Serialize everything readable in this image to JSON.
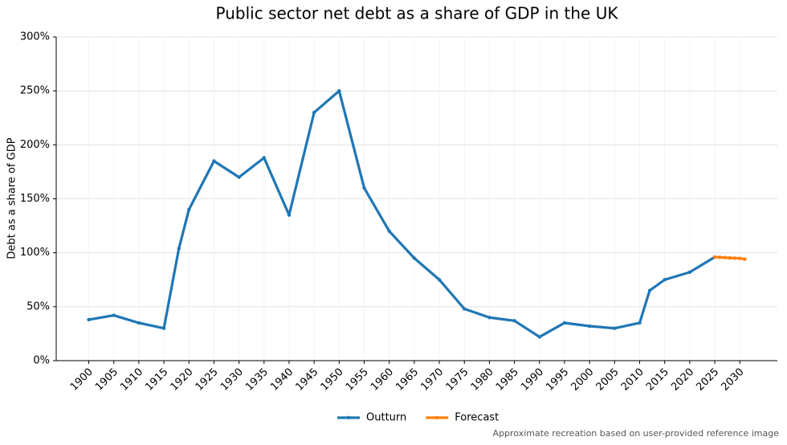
{
  "chart_data": {
    "type": "line",
    "title": "Public sector net debt as a share of GDP in the UK",
    "y_label": "Debt as a share of GDP",
    "footnote": "Approximate recreation based on user-provided reference image",
    "series": [
      {
        "name": "Outturn",
        "color": "#1f77b4",
        "x": [
          1900,
          1905,
          1910,
          1915,
          1918,
          1920,
          1925,
          1930,
          1935,
          1940,
          1945,
          1950,
          1955,
          1960,
          1965,
          1970,
          1975,
          1980,
          1985,
          1990,
          1995,
          2000,
          2005,
          2010,
          2012,
          2015,
          2020,
          2025
        ],
        "values": [
          38,
          42,
          35,
          30,
          104,
          140,
          185,
          170,
          188,
          135,
          230,
          250,
          160,
          120,
          95,
          75,
          48,
          40,
          37,
          22,
          35,
          32,
          30,
          35,
          65,
          75,
          82,
          96
        ]
      },
      {
        "name": "Forecast",
        "color": "#ff7f0e",
        "x": [
          2025,
          2026,
          2027,
          2028,
          2029,
          2030,
          2031
        ],
        "values": [
          96,
          95.8,
          95.5,
          95.2,
          95,
          94.8,
          94
        ]
      }
    ],
    "xlim": [
      1893.5,
      2037.5
    ],
    "xticks": [
      1900,
      1905,
      1910,
      1915,
      1920,
      1925,
      1930,
      1935,
      1940,
      1945,
      1950,
      1955,
      1960,
      1965,
      1970,
      1975,
      1980,
      1985,
      1990,
      1995,
      2000,
      2005,
      2010,
      2015,
      2020,
      2025,
      2030
    ],
    "ylim": [
      0,
      300
    ],
    "yticks": [
      {
        "value": 0,
        "label": "0%"
      },
      {
        "value": 50,
        "label": "50%"
      },
      {
        "value": 100,
        "label": "100%"
      },
      {
        "value": 150,
        "label": "150%"
      },
      {
        "value": 200,
        "label": "200%"
      },
      {
        "value": 250,
        "label": "250%"
      },
      {
        "value": 300,
        "label": "300%"
      }
    ],
    "grid": true,
    "legend": "bottom"
  }
}
